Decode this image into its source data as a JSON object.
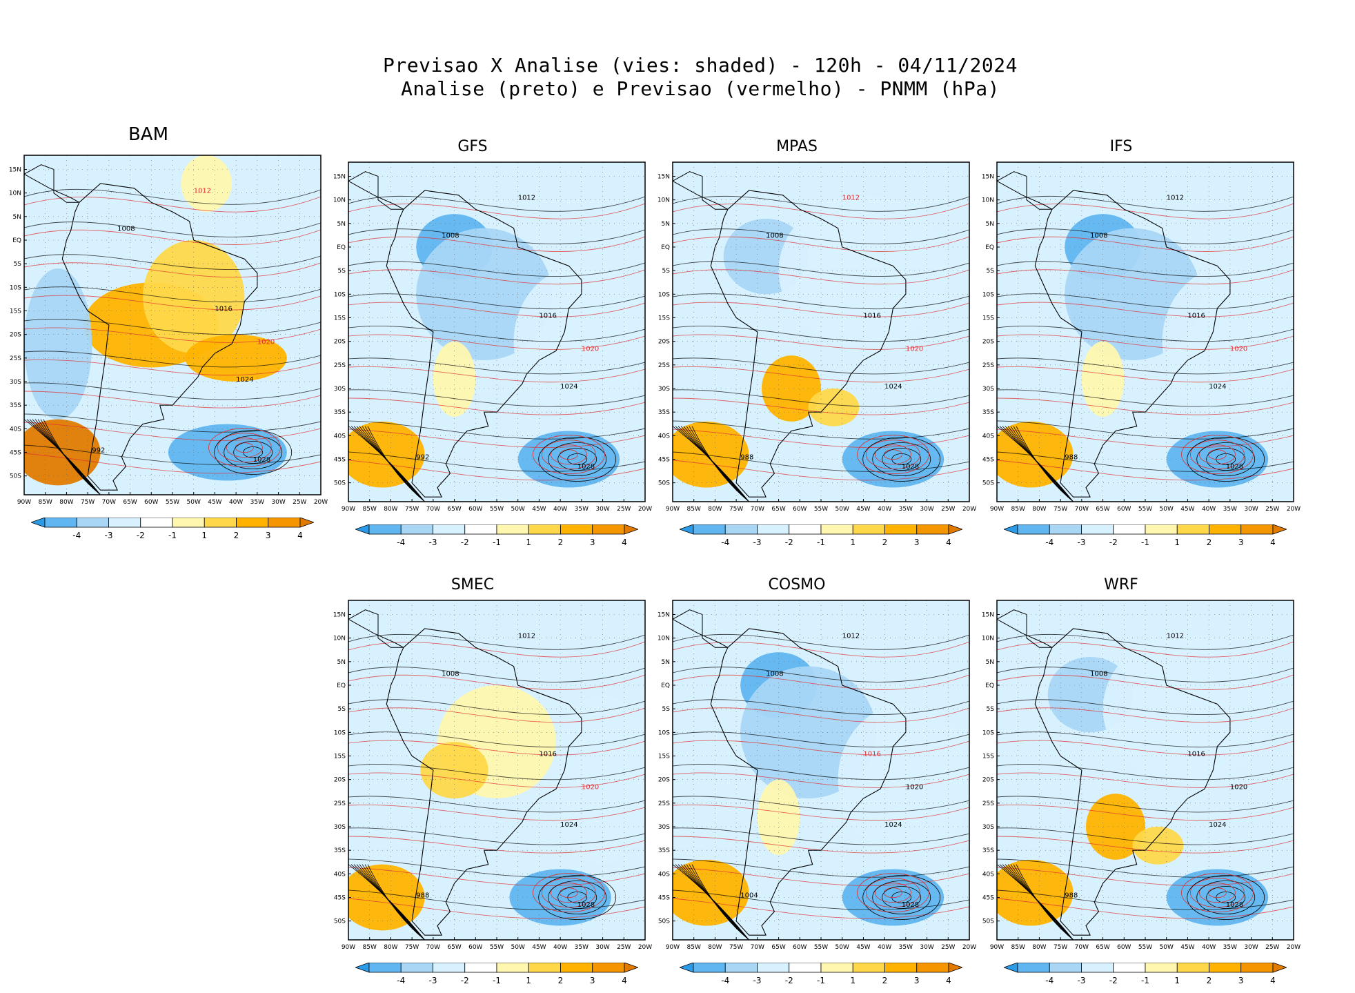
{
  "title": {
    "line1": "Previsao X Analise (vies: shaded) - 120h - 04/11/2024",
    "line2": "Analise (preto) e Previsao (vermelho) - PNMM (hPa)"
  },
  "lat_ticks": [
    "15N",
    "10N",
    "5N",
    "EQ",
    "5S",
    "10S",
    "15S",
    "20S",
    "25S",
    "30S",
    "35S",
    "40S",
    "45S",
    "50S"
  ],
  "lon_ticks": [
    "90W",
    "85W",
    "80W",
    "75W",
    "70W",
    "65W",
    "60W",
    "55W",
    "50W",
    "45W",
    "40W",
    "35W",
    "30W",
    "25W",
    "20W"
  ],
  "colorbar": {
    "labels": [
      "-4",
      "-3",
      "-2",
      "-1",
      "1",
      "2",
      "3",
      "4"
    ],
    "colors": [
      "#2b9be8",
      "#60b6f0",
      "#a9d6f5",
      "#d8f1ff",
      "#ffffff",
      "#fff7b0",
      "#ffd84a",
      "#ffb300",
      "#f59500",
      "#e07b00"
    ]
  },
  "colors": {
    "analysis": "#000000",
    "forecast": "#e03030"
  },
  "panels": [
    {
      "name": "BAM",
      "bias": "warm",
      "labels": [
        {
          "v": "1012",
          "t": "f"
        },
        {
          "v": "1008",
          "t": "a"
        },
        {
          "v": "1016",
          "t": "a"
        },
        {
          "v": "1020",
          "t": "f"
        },
        {
          "v": "1024",
          "t": "a"
        },
        {
          "v": "1028",
          "t": "a"
        },
        {
          "v": "992",
          "t": "a"
        }
      ]
    },
    {
      "name": "GFS",
      "bias": "cool",
      "labels": [
        {
          "v": "1012",
          "t": "a"
        },
        {
          "v": "1008",
          "t": "a"
        },
        {
          "v": "1016",
          "t": "a"
        },
        {
          "v": "1020",
          "t": "f"
        },
        {
          "v": "1024",
          "t": "a"
        },
        {
          "v": "1028",
          "t": "a"
        },
        {
          "v": "992",
          "t": "a"
        }
      ]
    },
    {
      "name": "MPAS",
      "bias": "mixed",
      "labels": [
        {
          "v": "1012",
          "t": "f"
        },
        {
          "v": "1008",
          "t": "a"
        },
        {
          "v": "1016",
          "t": "a"
        },
        {
          "v": "1020",
          "t": "f"
        },
        {
          "v": "1024",
          "t": "a"
        },
        {
          "v": "1028",
          "t": "a"
        },
        {
          "v": "988",
          "t": "a"
        }
      ]
    },
    {
      "name": "IFS",
      "bias": "cool",
      "labels": [
        {
          "v": "1012",
          "t": "a"
        },
        {
          "v": "1008",
          "t": "a"
        },
        {
          "v": "1016",
          "t": "a"
        },
        {
          "v": "1020",
          "t": "f"
        },
        {
          "v": "1024",
          "t": "a"
        },
        {
          "v": "1028",
          "t": "a"
        },
        {
          "v": "988",
          "t": "a"
        }
      ]
    },
    {
      "name": "SMEC",
      "bias": "mildwarm",
      "labels": [
        {
          "v": "1012",
          "t": "a"
        },
        {
          "v": "1008",
          "t": "a"
        },
        {
          "v": "1016",
          "t": "a"
        },
        {
          "v": "1020",
          "t": "f"
        },
        {
          "v": "1024",
          "t": "a"
        },
        {
          "v": "1028",
          "t": "a"
        },
        {
          "v": "988",
          "t": "a"
        }
      ]
    },
    {
      "name": "COSMO",
      "bias": "cool",
      "labels": [
        {
          "v": "1012",
          "t": "a"
        },
        {
          "v": "1008",
          "t": "a"
        },
        {
          "v": "1016",
          "t": "f"
        },
        {
          "v": "1020",
          "t": "a"
        },
        {
          "v": "1024",
          "t": "a"
        },
        {
          "v": "1028",
          "t": "a"
        },
        {
          "v": "1004",
          "t": "a"
        }
      ]
    },
    {
      "name": "WRF",
      "bias": "mixed",
      "labels": [
        {
          "v": "1012",
          "t": "a"
        },
        {
          "v": "1008",
          "t": "a"
        },
        {
          "v": "1016",
          "t": "a"
        },
        {
          "v": "1020",
          "t": "a"
        },
        {
          "v": "1024",
          "t": "a"
        },
        {
          "v": "1028",
          "t": "a"
        },
        {
          "v": "988",
          "t": "a"
        }
      ]
    }
  ]
}
